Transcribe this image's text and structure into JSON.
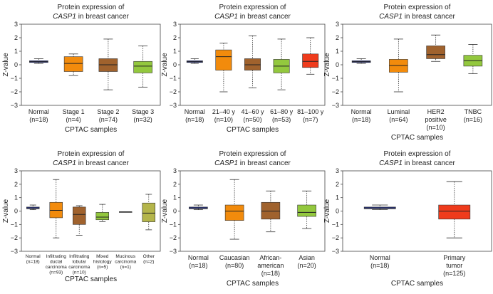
{
  "chart_data": [
    {
      "type": "box",
      "title_line1": "Protein expression of",
      "title_gene": "CASP1",
      "title_rest": "in breast cancer",
      "ylabel": "Z-value",
      "xlabel": "CPTAC samples",
      "ylim": [
        -3,
        3
      ],
      "yticks": [
        3,
        2,
        1,
        0,
        -1,
        -2,
        -3
      ],
      "categories": [
        {
          "label": [
            "Normal",
            "(n=18)"
          ],
          "color": "#2b3bab",
          "whisker_low": 0.1,
          "q1": 0.17,
          "median": 0.23,
          "q3": 0.3,
          "whisker_high": 0.45
        },
        {
          "label": [
            "Stage 1",
            "(n=4)"
          ],
          "color": "#f28b0c",
          "whisker_low": -0.8,
          "q1": -0.5,
          "median": 0.1,
          "q3": 0.6,
          "whisker_high": 0.8
        },
        {
          "label": [
            "Stage 2",
            "(n=74)"
          ],
          "color": "#a0622d",
          "whisker_low": -1.85,
          "q1": -0.5,
          "median": 0.0,
          "q3": 0.45,
          "whisker_high": 1.9
        },
        {
          "label": [
            "Stage 3",
            "(n=32)"
          ],
          "color": "#93c83e",
          "whisker_low": -1.65,
          "q1": -0.6,
          "median": -0.1,
          "q3": 0.25,
          "whisker_high": 1.4
        }
      ]
    },
    {
      "type": "box",
      "title_line1": "Protein expression of",
      "title_gene": "CASP1",
      "title_rest": "in breast cancer",
      "ylabel": "Z-value",
      "xlabel": "CPTAC samples",
      "ylim": [
        -3,
        3
      ],
      "yticks": [
        3,
        2,
        1,
        0,
        -1,
        -2,
        -3
      ],
      "categories": [
        {
          "label": [
            "Normal",
            "(n=18)"
          ],
          "color": "#2b3bab",
          "whisker_low": 0.1,
          "q1": 0.17,
          "median": 0.23,
          "q3": 0.3,
          "whisker_high": 0.45
        },
        {
          "label": [
            "21–40 y",
            "(n=10)"
          ],
          "color": "#f28b0c",
          "whisker_low": -2.0,
          "q1": -0.4,
          "median": 0.6,
          "q3": 1.1,
          "whisker_high": 1.6
        },
        {
          "label": [
            "41–60 y",
            "(n=50)"
          ],
          "color": "#a0622d",
          "whisker_low": -1.7,
          "q1": -0.4,
          "median": 0.0,
          "q3": 0.45,
          "whisker_high": 2.15
        },
        {
          "label": [
            "61–80 y",
            "(n=53)"
          ],
          "color": "#93c83e",
          "whisker_low": -1.85,
          "q1": -0.6,
          "median": -0.1,
          "q3": 0.4,
          "whisker_high": 1.9
        },
        {
          "label": [
            "81–100 y",
            "(n=7)"
          ],
          "color": "#ef3b1c",
          "whisker_low": -0.7,
          "q1": -0.2,
          "median": 0.25,
          "q3": 0.8,
          "whisker_high": 2.0
        }
      ]
    },
    {
      "type": "box",
      "title_line1": "Protein expression of",
      "title_gene": "CASP1",
      "title_rest": "in breast cancer",
      "ylabel": "Z-value",
      "xlabel": "CPTAC samples",
      "ylim": [
        -3,
        3
      ],
      "yticks": [
        3,
        2,
        1,
        0,
        -1,
        -2,
        -3
      ],
      "categories": [
        {
          "label": [
            "Normal",
            "(n=18)"
          ],
          "color": "#2b3bab",
          "whisker_low": 0.1,
          "q1": 0.17,
          "median": 0.23,
          "q3": 0.3,
          "whisker_high": 0.45
        },
        {
          "label": [
            "Luminal",
            "(n=64)"
          ],
          "color": "#f28b0c",
          "whisker_low": -2.0,
          "q1": -0.55,
          "median": -0.05,
          "q3": 0.4,
          "whisker_high": 1.9
        },
        {
          "label": [
            "HER2",
            "positive",
            "(n=10)"
          ],
          "color": "#a0622d",
          "whisker_low": 0.25,
          "q1": 0.45,
          "median": 0.75,
          "q3": 1.4,
          "whisker_high": 2.2
        },
        {
          "label": [
            "TNBC",
            "(n=16)"
          ],
          "color": "#93c83e",
          "whisker_low": -0.65,
          "q1": -0.1,
          "median": 0.3,
          "q3": 0.7,
          "whisker_high": 1.5
        }
      ]
    },
    {
      "type": "box",
      "title_line1": "Protein expression of",
      "title_gene": "CASP1",
      "title_rest": "in breast cancer",
      "ylabel": "Z-value",
      "xlabel": "CPTAC samples",
      "ylim": [
        -3,
        3
      ],
      "yticks": [
        3,
        2,
        1,
        0,
        -1,
        -2,
        -3
      ],
      "small_labels": true,
      "categories": [
        {
          "label": [
            "Normal",
            "(n=18)"
          ],
          "color": "#2b3bab",
          "whisker_low": 0.1,
          "q1": 0.17,
          "median": 0.23,
          "q3": 0.3,
          "whisker_high": 0.45
        },
        {
          "label": [
            "Infiltrating",
            "ductal",
            "carcinoma",
            "(n=93)"
          ],
          "color": "#f28b0c",
          "whisker_low": -2.0,
          "q1": -0.5,
          "median": 0.05,
          "q3": 0.65,
          "whisker_high": 2.35
        },
        {
          "label": [
            "Infiltrating",
            "lobular",
            "carcinoma",
            "(n=10)"
          ],
          "color": "#a0622d",
          "whisker_low": -1.8,
          "q1": -1.0,
          "median": -0.25,
          "q3": 0.3,
          "whisker_high": 0.4
        },
        {
          "label": [
            "Mixed",
            "histology",
            "(n=5)"
          ],
          "color": "#93c83e",
          "whisker_low": -0.8,
          "q1": -0.65,
          "median": -0.45,
          "q3": -0.1,
          "whisker_high": 0.5
        },
        {
          "label": [
            "Mucinous",
            "carcinoma",
            "(n=1)"
          ],
          "color": "#333333",
          "whisker_low": -0.05,
          "q1": -0.05,
          "median": -0.05,
          "q3": -0.05,
          "whisker_high": -0.05
        },
        {
          "label": [
            "Other",
            "(n=2)"
          ],
          "color": "#b4b54a",
          "whisker_low": -1.4,
          "q1": -0.8,
          "median": -0.15,
          "q3": 0.6,
          "whisker_high": 1.25
        }
      ]
    },
    {
      "type": "box",
      "title_line1": "Protein expression of",
      "title_gene": "CASP1",
      "title_rest": "in breast cancer",
      "ylabel": "Z-value",
      "xlabel": "CPTAC samples",
      "ylim": [
        -3,
        3
      ],
      "yticks": [
        3,
        2,
        1,
        0,
        -1,
        -2,
        -3
      ],
      "categories": [
        {
          "label": [
            "Normal",
            "(n=18)"
          ],
          "color": "#2b3bab",
          "whisker_low": 0.1,
          "q1": 0.17,
          "median": 0.23,
          "q3": 0.3,
          "whisker_high": 0.45
        },
        {
          "label": [
            "Caucasian",
            "(n=80)"
          ],
          "color": "#f28b0c",
          "whisker_low": -2.1,
          "q1": -0.7,
          "median": 0.0,
          "q3": 0.45,
          "whisker_high": 2.35
        },
        {
          "label": [
            "African-",
            "american",
            "(n=18)"
          ],
          "color": "#a0622d",
          "whisker_low": -1.55,
          "q1": -0.6,
          "median": 0.0,
          "q3": 0.65,
          "whisker_high": 1.5
        },
        {
          "label": [
            "Asian",
            "(n=20)"
          ],
          "color": "#93c83e",
          "whisker_low": -1.3,
          "q1": -0.4,
          "median": -0.1,
          "q3": 0.45,
          "whisker_high": 1.5
        }
      ]
    },
    {
      "type": "box",
      "title_line1": "Protein expression of",
      "title_gene": "CASP1",
      "title_rest": "in breast cancer",
      "ylabel": "Z-value",
      "xlabel": "CPTAC samples",
      "ylim": [
        -3,
        3
      ],
      "yticks": [
        3,
        2,
        1,
        0,
        -1,
        -2,
        -3
      ],
      "categories": [
        {
          "label": [
            "Normal",
            "(n=18)"
          ],
          "color": "#2b3bab",
          "whisker_low": 0.1,
          "q1": 0.17,
          "median": 0.23,
          "q3": 0.3,
          "whisker_high": 0.45
        },
        {
          "label": [
            "Primary",
            "tumor",
            "(n=125)"
          ],
          "color": "#ef3b1c",
          "whisker_low": -2.0,
          "q1": -0.6,
          "median": 0.0,
          "q3": 0.45,
          "whisker_high": 2.2
        }
      ]
    }
  ]
}
